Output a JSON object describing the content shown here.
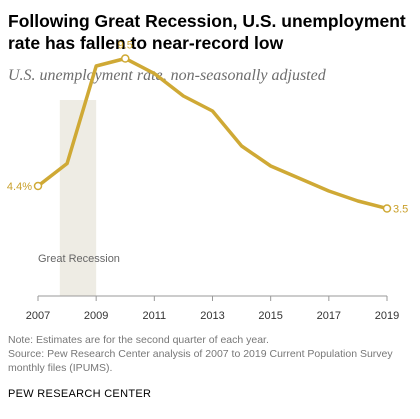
{
  "header": {
    "title": "Following Great Recession, U.S. unemployment rate has fallen to near-record low",
    "subtitle": "U.S. unemployment rate, non-seasonally adjusted"
  },
  "footer": {
    "note": "Note: Estimates are for the second quarter of each year.",
    "source": "Source: Pew Research Center analysis of 2007 to 2019 Current Population Survey monthly files (IPUMS).",
    "brand": "PEW RESEARCH CENTER"
  },
  "colors": {
    "line": "#cfa935",
    "label": "#c9a02b",
    "recession_band": "#eeece4",
    "axis": "#999999",
    "tick_text": "#333333"
  },
  "chart_data": {
    "type": "line",
    "title": "Following Great Recession, U.S. unemployment rate has fallen to near-record low",
    "subtitle": "U.S. unemployment rate, non-seasonally adjusted",
    "xlabel": "",
    "ylabel": "",
    "x": [
      2007,
      2008,
      2009,
      2010,
      2011,
      2012,
      2013,
      2014,
      2015,
      2016,
      2017,
      2018,
      2019
    ],
    "series": [
      {
        "values": [
          4.4,
          5.3,
          9.2,
          9.5,
          8.9,
          8.0,
          7.4,
          6.0,
          5.2,
          4.7,
          4.2,
          3.8,
          3.5
        ]
      }
    ],
    "xlim": [
      2007,
      2019
    ],
    "ylim": [
      0,
      10
    ],
    "xticks": [
      "2007",
      "2009",
      "2011",
      "2013",
      "2015",
      "2017",
      "2019"
    ],
    "grid": false,
    "point_labels": [
      {
        "index": 0,
        "text": "4.4%",
        "anchor": "left"
      },
      {
        "index": 3,
        "text": "9.5",
        "anchor": "top"
      },
      {
        "index": 12,
        "text": "3.5",
        "anchor": "right"
      }
    ],
    "shaded_region": {
      "from": 2007.75,
      "to": 2009.0,
      "label": "Great Recession"
    }
  }
}
